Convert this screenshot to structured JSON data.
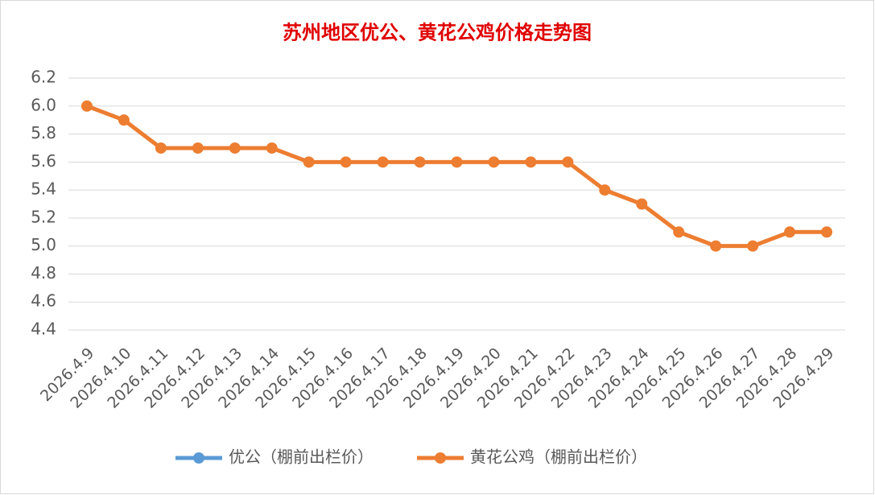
{
  "chart_data": {
    "type": "line",
    "title": "苏州地区优公、黄花公鸡价格走势图",
    "categories": [
      "2026.4.9",
      "2026.4.10",
      "2026.4.11",
      "2026.4.12",
      "2026.4.13",
      "2026.4.14",
      "2026.4.15",
      "2026.4.16",
      "2026.4.17",
      "2026.4.18",
      "2026.4.19",
      "2026.4.20",
      "2026.4.21",
      "2026.4.22",
      "2026.4.23",
      "2026.4.24",
      "2026.4.25",
      "2026.4.26",
      "2026.4.27",
      "2026.4.28",
      "2026.4.29"
    ],
    "series": [
      {
        "name": "优公（棚前出栏价）",
        "color": "#5b9bd5",
        "values": [
          null,
          null,
          null,
          null,
          null,
          null,
          null,
          null,
          null,
          null,
          null,
          null,
          null,
          null,
          null,
          null,
          null,
          null,
          null,
          null,
          null
        ]
      },
      {
        "name": "黄花公鸡（棚前出栏价）",
        "color": "#ed7d31",
        "values": [
          6.0,
          5.9,
          5.7,
          5.7,
          5.7,
          5.7,
          5.6,
          5.6,
          5.6,
          5.6,
          5.6,
          5.6,
          5.6,
          5.6,
          5.4,
          5.3,
          5.1,
          5.0,
          5.0,
          5.1,
          5.1
        ]
      }
    ],
    "ylim": [
      4.4,
      6.2
    ],
    "yticks": [
      4.4,
      4.6,
      4.8,
      {
        "value": 5,
        "label": "5.0"
      },
      5.2,
      5.4,
      5.6,
      5.8,
      {
        "value": 6,
        "label": "6.0"
      },
      6.2
    ],
    "grid": true,
    "legend": "bottom"
  }
}
